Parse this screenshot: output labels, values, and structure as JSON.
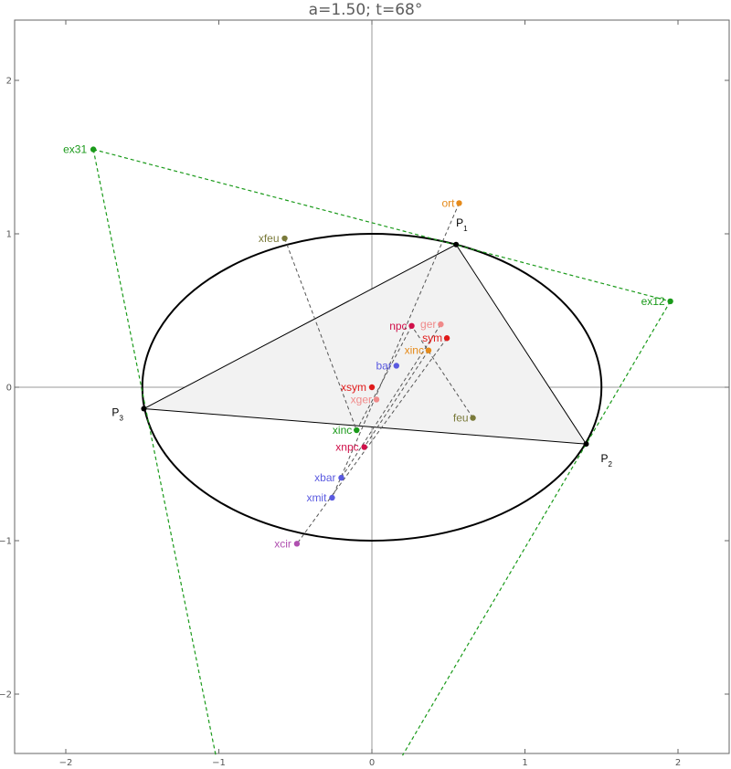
{
  "title": "a=1.50; t=68°",
  "colors": {
    "frame": "#666666",
    "axis": "#999999",
    "ellipse": "#000000",
    "triangle_fill": "#f2f2f2",
    "excentral": "#1a9a1a",
    "dashed": "#555555",
    "green": "#1a9a1a",
    "orange": "#e58a1a",
    "olive": "#7a7a3a",
    "red": "#e01a1a",
    "crimson": "#d0104a",
    "pink": "#f08a8a",
    "blue": "#5a5ae0",
    "purple": "#b050b0"
  },
  "chart_data": {
    "type": "geometry",
    "title": "a=1.50; t=68°",
    "xlim": [
      -2.35,
      2.35
    ],
    "ylim": [
      -2.4,
      2.4
    ],
    "x_ticks": [
      {
        "value": -2,
        "label": "−2"
      },
      {
        "value": -1,
        "label": "−1"
      },
      {
        "value": 0,
        "label": "0"
      },
      {
        "value": 1,
        "label": "1"
      },
      {
        "value": 2,
        "label": "2"
      }
    ],
    "y_ticks": [
      {
        "value": 2,
        "label": "2"
      },
      {
        "value": 1,
        "label": "1"
      },
      {
        "value": 0,
        "label": "0"
      },
      {
        "value": -1,
        "label": "−1"
      },
      {
        "value": -2,
        "label": "−2"
      }
    ],
    "ellipse": {
      "cx": 0,
      "cy": 0,
      "rx": 1.5,
      "ry": 1.0
    },
    "triangle": [
      {
        "name": "P1",
        "label": "P",
        "sub": "1",
        "x": 0.55,
        "y": 0.93
      },
      {
        "name": "P2",
        "label": "P",
        "sub": "2",
        "x": 1.4,
        "y": -0.37
      },
      {
        "name": "P3",
        "label": "P",
        "sub": "3",
        "x": -1.49,
        "y": -0.14
      }
    ],
    "excentral": [
      {
        "name": "ex31",
        "label": "ex31",
        "x": -1.82,
        "y": 1.55,
        "color": "green"
      },
      {
        "name": "ex12",
        "label": "ex12",
        "x": 1.95,
        "y": 0.56,
        "color": "green"
      }
    ],
    "points": [
      {
        "name": "ort",
        "label": "ort",
        "x": 0.57,
        "y": 1.2,
        "color": "orange"
      },
      {
        "name": "xfeu",
        "label": "xfeu",
        "x": -0.57,
        "y": 0.97,
        "color": "olive"
      },
      {
        "name": "npc",
        "label": "npc",
        "x": 0.26,
        "y": 0.4,
        "color": "crimson"
      },
      {
        "name": "ger",
        "label": "ger",
        "x": 0.45,
        "y": 0.41,
        "color": "pink"
      },
      {
        "name": "sym",
        "label": "sym",
        "x": 0.49,
        "y": 0.32,
        "color": "red"
      },
      {
        "name": "xinc_orange",
        "label": "xinc",
        "x": 0.37,
        "y": 0.24,
        "color": "orange"
      },
      {
        "name": "bar",
        "label": "bar",
        "x": 0.16,
        "y": 0.14,
        "color": "blue"
      },
      {
        "name": "xsym",
        "label": "xsym",
        "x": 0.0,
        "y": 0.0,
        "color": "red"
      },
      {
        "name": "xger",
        "label": "xger",
        "x": 0.03,
        "y": -0.08,
        "color": "pink"
      },
      {
        "name": "feu",
        "label": "feu",
        "x": 0.66,
        "y": -0.2,
        "color": "olive"
      },
      {
        "name": "xinc",
        "label": "xinc",
        "x": -0.1,
        "y": -0.28,
        "color": "green"
      },
      {
        "name": "xnpc",
        "label": "xnpc",
        "x": -0.05,
        "y": -0.39,
        "color": "crimson"
      },
      {
        "name": "xbar",
        "label": "xbar",
        "x": -0.2,
        "y": -0.59,
        "color": "blue"
      },
      {
        "name": "xmit",
        "label": "xmit",
        "x": -0.26,
        "y": -0.72,
        "color": "blue"
      },
      {
        "name": "xcir",
        "label": "xcir",
        "x": -0.49,
        "y": -1.02,
        "color": "purple"
      }
    ],
    "dashed_lines": [
      [
        -0.57,
        0.97,
        -0.1,
        -0.28
      ],
      [
        0.57,
        1.2,
        -0.26,
        -0.72
      ],
      [
        0.66,
        -0.2,
        0.26,
        0.4
      ],
      [
        0.49,
        0.32,
        -0.49,
        -1.02
      ],
      [
        0.45,
        0.41,
        -0.2,
        -0.59
      ],
      [
        0.37,
        0.24,
        -0.05,
        -0.39
      ],
      [
        0.26,
        0.4,
        -0.1,
        -0.28
      ]
    ],
    "excentral_lines": [
      [
        -1.82,
        1.55,
        1.95,
        0.56
      ],
      [
        -1.82,
        1.55,
        -1.02,
        -2.4
      ],
      [
        1.95,
        0.56,
        0.2,
        -2.4
      ]
    ]
  }
}
